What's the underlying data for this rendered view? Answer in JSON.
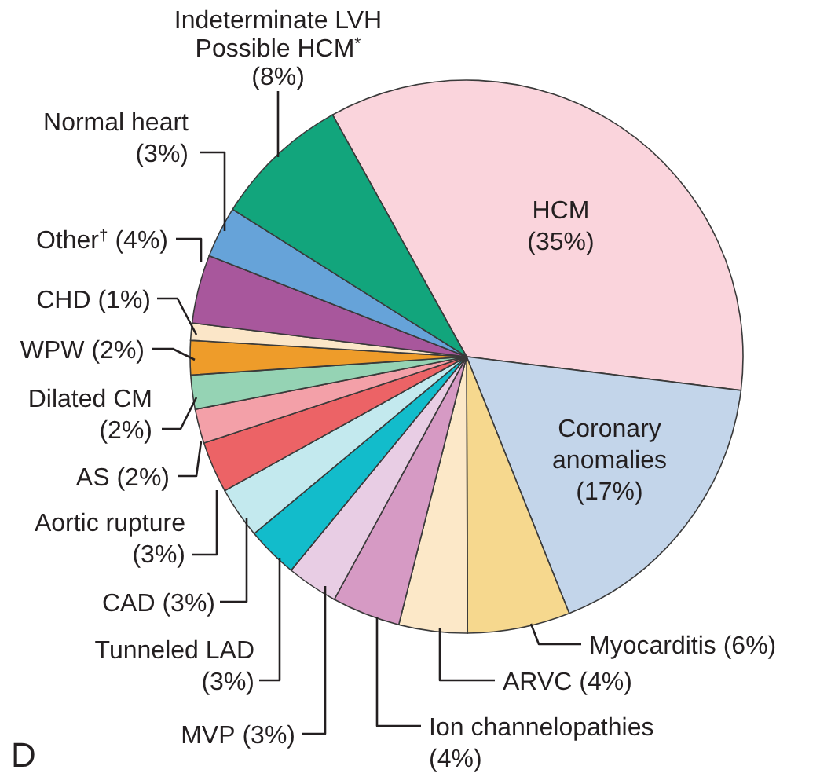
{
  "chart_data": {
    "type": "pie",
    "categories": [
      "HCM",
      "Coronary anomalies",
      "Myocarditis",
      "ARVC",
      "Ion channelopathies",
      "MVP",
      "Tunneled LAD",
      "CAD",
      "Aortic rupture",
      "AS",
      "Dilated CM",
      "WPW",
      "CHD",
      "Other$^{†}$",
      "Normal heart",
      "Indeterminate LVH Possible HCM$^{*}$"
    ],
    "values": [
      35,
      17,
      6,
      4,
      4,
      3,
      3,
      3,
      3,
      2,
      2,
      2,
      1,
      4,
      3,
      8
    ],
    "value_labels": [
      "(35%)",
      "(17%)",
      "(6%)",
      "(4%)",
      "(4%)",
      "(3%)",
      "(3%)",
      "(3%)",
      "(3%)",
      "(2%)",
      "(2%)",
      "(2%)",
      "(1%)",
      "(4%)",
      "(3%)",
      "(8%)"
    ],
    "colors": [
      "#fad4dc",
      "#c3d5ea",
      "#f6d88e",
      "#fce8c8",
      "#d69ac4",
      "#e8cde4",
      "#12bccb",
      "#c3e9ee",
      "#ec6366",
      "#f3a0a8",
      "#95d3b4",
      "#ee9c2a",
      "#fbe6c8",
      "#a8579c",
      "#66a3d9",
      "#12a57c"
    ],
    "annotations": [
      "D"
    ]
  }
}
